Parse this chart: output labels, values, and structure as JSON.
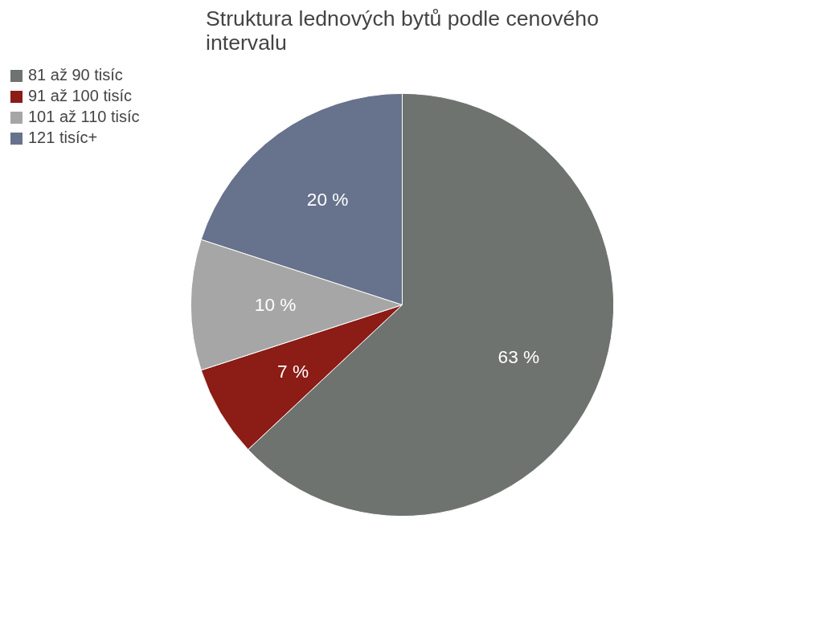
{
  "chart_data": {
    "type": "pie",
    "title": "Struktura lednových bytů podle cenového intervalu",
    "categories": [
      "81 až 90 tisíc",
      "91 až 100 tisíc",
      "101 až 110 tisíc",
      "121 tisíc+"
    ],
    "values": [
      63,
      7,
      10,
      20
    ],
    "colors": [
      "#6e7370",
      "#8b1c16",
      "#a6a6a6",
      "#67738c"
    ],
    "value_labels": [
      "63 %",
      "7 %",
      "10 %",
      "20 %"
    ],
    "legend": "top left"
  }
}
